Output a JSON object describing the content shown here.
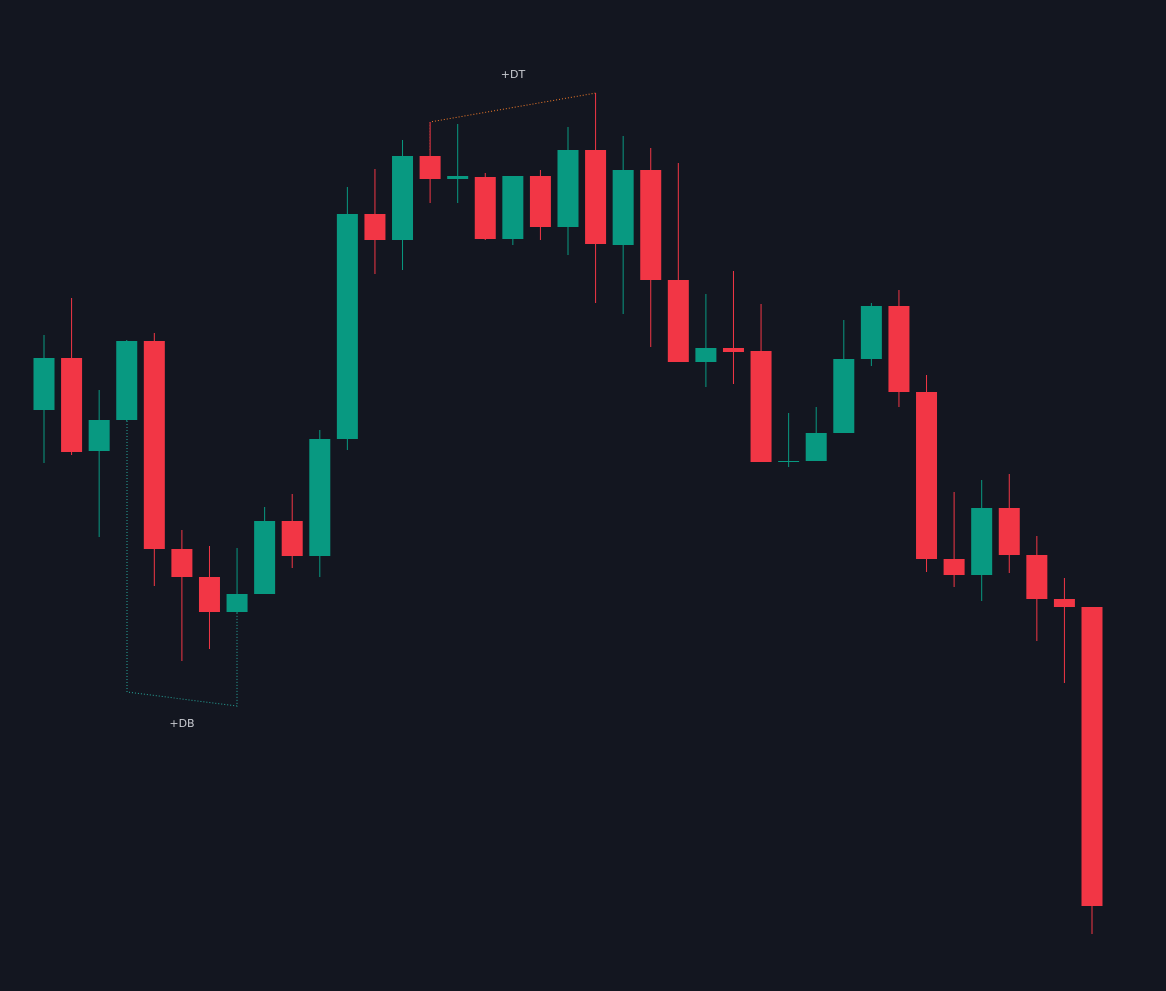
{
  "chart_data": {
    "type": "candlestick",
    "up_color": "#089981",
    "down_color": "#f23645",
    "ylim": [
      0,
      991
    ],
    "open": [
      581,
      633,
      540,
      571,
      650,
      442,
      414,
      379,
      397,
      470,
      435,
      552,
      777,
      751,
      835,
      812,
      814,
      752,
      815,
      764,
      841,
      746,
      821,
      711,
      629,
      643,
      640,
      529,
      530,
      558,
      632,
      685,
      599,
      432,
      416,
      483,
      436,
      392,
      384
    ],
    "high": [
      656,
      693,
      601,
      651,
      658,
      461,
      445,
      443,
      484,
      497,
      561,
      804,
      822,
      851,
      869,
      867,
      818,
      815,
      821,
      864,
      898,
      855,
      843,
      828,
      697,
      720,
      687,
      578,
      584,
      671,
      688,
      701,
      616,
      499,
      511,
      517,
      455,
      413,
      384
    ],
    "low": [
      528,
      536,
      454,
      570,
      405,
      330,
      342,
      378,
      397,
      423,
      414,
      541,
      717,
      721,
      788,
      788,
      751,
      746,
      751,
      736,
      688,
      677,
      644,
      629,
      604,
      607,
      529,
      524,
      530,
      558,
      625,
      584,
      419,
      404,
      390,
      418,
      350,
      308,
      57
    ],
    "close": [
      633,
      539,
      571,
      650,
      442,
      414,
      379,
      397,
      470,
      435,
      552,
      777,
      751,
      835,
      812,
      815,
      752,
      815,
      764,
      841,
      747,
      821,
      711,
      629,
      643,
      639,
      529,
      530,
      558,
      632,
      685,
      599,
      432,
      416,
      483,
      436,
      392,
      384,
      85
    ],
    "annotations": [
      {
        "text": "+DB"
      },
      {
        "text": "+DT"
      }
    ]
  }
}
